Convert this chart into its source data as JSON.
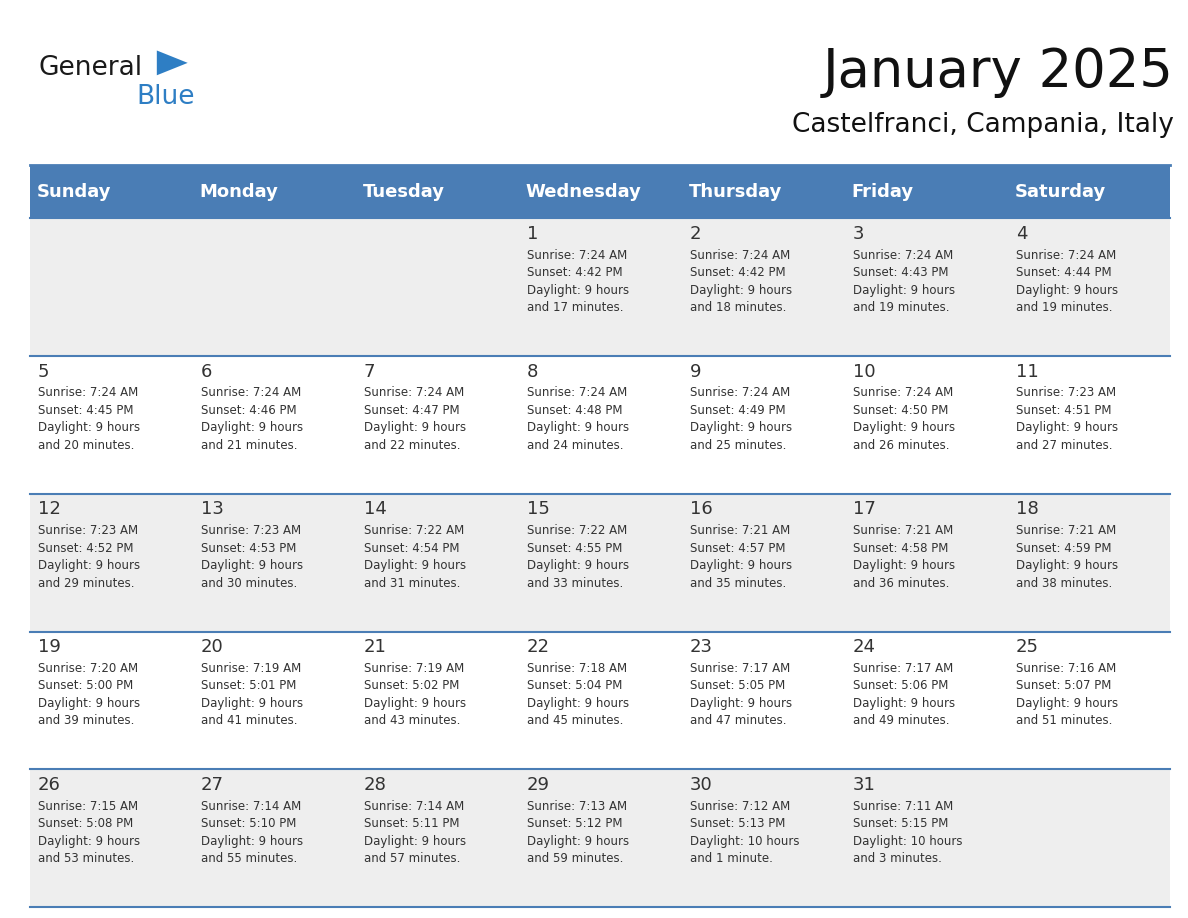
{
  "title": "January 2025",
  "subtitle": "Castelfranci, Campania, Italy",
  "header_bg_color": "#4A7DB5",
  "header_text_color": "#FFFFFF",
  "cell_bg_color_odd": "#EEEEEE",
  "cell_bg_color_even": "#FFFFFF",
  "cell_text_color": "#333333",
  "day_number_color": "#333333",
  "grid_line_color": "#4A7DB5",
  "days_of_week": [
    "Sunday",
    "Monday",
    "Tuesday",
    "Wednesday",
    "Thursday",
    "Friday",
    "Saturday"
  ],
  "weeks": [
    [
      {
        "day": "",
        "info": ""
      },
      {
        "day": "",
        "info": ""
      },
      {
        "day": "",
        "info": ""
      },
      {
        "day": "1",
        "info": "Sunrise: 7:24 AM\nSunset: 4:42 PM\nDaylight: 9 hours\nand 17 minutes."
      },
      {
        "day": "2",
        "info": "Sunrise: 7:24 AM\nSunset: 4:42 PM\nDaylight: 9 hours\nand 18 minutes."
      },
      {
        "day": "3",
        "info": "Sunrise: 7:24 AM\nSunset: 4:43 PM\nDaylight: 9 hours\nand 19 minutes."
      },
      {
        "day": "4",
        "info": "Sunrise: 7:24 AM\nSunset: 4:44 PM\nDaylight: 9 hours\nand 19 minutes."
      }
    ],
    [
      {
        "day": "5",
        "info": "Sunrise: 7:24 AM\nSunset: 4:45 PM\nDaylight: 9 hours\nand 20 minutes."
      },
      {
        "day": "6",
        "info": "Sunrise: 7:24 AM\nSunset: 4:46 PM\nDaylight: 9 hours\nand 21 minutes."
      },
      {
        "day": "7",
        "info": "Sunrise: 7:24 AM\nSunset: 4:47 PM\nDaylight: 9 hours\nand 22 minutes."
      },
      {
        "day": "8",
        "info": "Sunrise: 7:24 AM\nSunset: 4:48 PM\nDaylight: 9 hours\nand 24 minutes."
      },
      {
        "day": "9",
        "info": "Sunrise: 7:24 AM\nSunset: 4:49 PM\nDaylight: 9 hours\nand 25 minutes."
      },
      {
        "day": "10",
        "info": "Sunrise: 7:24 AM\nSunset: 4:50 PM\nDaylight: 9 hours\nand 26 minutes."
      },
      {
        "day": "11",
        "info": "Sunrise: 7:23 AM\nSunset: 4:51 PM\nDaylight: 9 hours\nand 27 minutes."
      }
    ],
    [
      {
        "day": "12",
        "info": "Sunrise: 7:23 AM\nSunset: 4:52 PM\nDaylight: 9 hours\nand 29 minutes."
      },
      {
        "day": "13",
        "info": "Sunrise: 7:23 AM\nSunset: 4:53 PM\nDaylight: 9 hours\nand 30 minutes."
      },
      {
        "day": "14",
        "info": "Sunrise: 7:22 AM\nSunset: 4:54 PM\nDaylight: 9 hours\nand 31 minutes."
      },
      {
        "day": "15",
        "info": "Sunrise: 7:22 AM\nSunset: 4:55 PM\nDaylight: 9 hours\nand 33 minutes."
      },
      {
        "day": "16",
        "info": "Sunrise: 7:21 AM\nSunset: 4:57 PM\nDaylight: 9 hours\nand 35 minutes."
      },
      {
        "day": "17",
        "info": "Sunrise: 7:21 AM\nSunset: 4:58 PM\nDaylight: 9 hours\nand 36 minutes."
      },
      {
        "day": "18",
        "info": "Sunrise: 7:21 AM\nSunset: 4:59 PM\nDaylight: 9 hours\nand 38 minutes."
      }
    ],
    [
      {
        "day": "19",
        "info": "Sunrise: 7:20 AM\nSunset: 5:00 PM\nDaylight: 9 hours\nand 39 minutes."
      },
      {
        "day": "20",
        "info": "Sunrise: 7:19 AM\nSunset: 5:01 PM\nDaylight: 9 hours\nand 41 minutes."
      },
      {
        "day": "21",
        "info": "Sunrise: 7:19 AM\nSunset: 5:02 PM\nDaylight: 9 hours\nand 43 minutes."
      },
      {
        "day": "22",
        "info": "Sunrise: 7:18 AM\nSunset: 5:04 PM\nDaylight: 9 hours\nand 45 minutes."
      },
      {
        "day": "23",
        "info": "Sunrise: 7:17 AM\nSunset: 5:05 PM\nDaylight: 9 hours\nand 47 minutes."
      },
      {
        "day": "24",
        "info": "Sunrise: 7:17 AM\nSunset: 5:06 PM\nDaylight: 9 hours\nand 49 minutes."
      },
      {
        "day": "25",
        "info": "Sunrise: 7:16 AM\nSunset: 5:07 PM\nDaylight: 9 hours\nand 51 minutes."
      }
    ],
    [
      {
        "day": "26",
        "info": "Sunrise: 7:15 AM\nSunset: 5:08 PM\nDaylight: 9 hours\nand 53 minutes."
      },
      {
        "day": "27",
        "info": "Sunrise: 7:14 AM\nSunset: 5:10 PM\nDaylight: 9 hours\nand 55 minutes."
      },
      {
        "day": "28",
        "info": "Sunrise: 7:14 AM\nSunset: 5:11 PM\nDaylight: 9 hours\nand 57 minutes."
      },
      {
        "day": "29",
        "info": "Sunrise: 7:13 AM\nSunset: 5:12 PM\nDaylight: 9 hours\nand 59 minutes."
      },
      {
        "day": "30",
        "info": "Sunrise: 7:12 AM\nSunset: 5:13 PM\nDaylight: 10 hours\nand 1 minute."
      },
      {
        "day": "31",
        "info": "Sunrise: 7:11 AM\nSunset: 5:15 PM\nDaylight: 10 hours\nand 3 minutes."
      },
      {
        "day": "",
        "info": ""
      }
    ]
  ],
  "logo_general_color": "#1a1a1a",
  "logo_blue_color": "#2E7EC4",
  "logo_triangle_color": "#2E7EC4",
  "title_fontsize": 38,
  "subtitle_fontsize": 19,
  "header_fontsize": 13,
  "day_num_fontsize": 13,
  "info_fontsize": 8.5
}
